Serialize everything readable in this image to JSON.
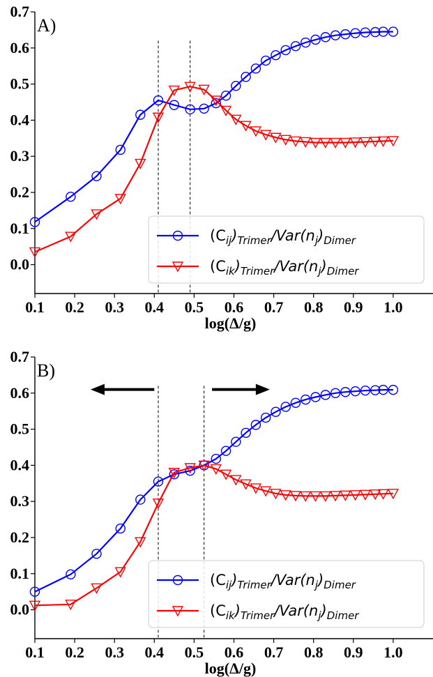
{
  "colors": {
    "series_1": "#0000ff",
    "series_2": "#ff0000",
    "axis": "#000000"
  },
  "legend_items": [
    {
      "main_1": "(C",
      "sub_1": "ij",
      "main_2": ")",
      "sub_2": "Trimer",
      "main_3": "/Var(n",
      "sub_3": "j",
      "main_4": ")",
      "sub_4": "Dimer"
    },
    {
      "main_1": "(C",
      "sub_1": "ik",
      "main_2": ")",
      "sub_2": "Trimer",
      "main_3": "/Var(n",
      "sub_3": "j",
      "main_4": ")",
      "sub_4": "Dimer"
    }
  ],
  "chart_data": [
    {
      "type": "line",
      "panel_label": "A)",
      "xlabel": "log(Δ/g)",
      "ylabel": "",
      "xlim": [
        0.1,
        1.1
      ],
      "ylim": [
        -0.08,
        0.7
      ],
      "xticks": [
        "0.1",
        "0.2",
        "0.3",
        "0.4",
        "0.5",
        "0.6",
        "0.7",
        "0.8",
        "0.9",
        "1.0"
      ],
      "yticks": [
        "0.0",
        "0.1",
        "0.2",
        "0.3",
        "0.4",
        "0.5",
        "0.6",
        "0.7"
      ],
      "legend_position": "lower-right",
      "vlines": [
        0.41,
        0.49
      ],
      "arrows": [],
      "series": [
        {
          "legend_index": 0,
          "marker": "circle",
          "x": [
            0.1,
            0.19,
            0.255,
            0.315,
            0.365,
            0.41,
            0.45,
            0.49,
            0.525,
            0.555,
            0.58,
            0.605,
            0.63,
            0.655,
            0.68,
            0.705,
            0.73,
            0.755,
            0.78,
            0.805,
            0.83,
            0.855,
            0.88,
            0.905,
            0.93,
            0.955,
            0.975,
            1.0
          ],
          "y": [
            0.118,
            0.188,
            0.245,
            0.318,
            0.415,
            0.455,
            0.442,
            0.43,
            0.432,
            0.447,
            0.468,
            0.495,
            0.52,
            0.543,
            0.565,
            0.58,
            0.594,
            0.605,
            0.615,
            0.623,
            0.63,
            0.635,
            0.638,
            0.641,
            0.643,
            0.644,
            0.645,
            0.645
          ]
        },
        {
          "legend_index": 1,
          "marker": "triangle-down",
          "x": [
            0.1,
            0.19,
            0.255,
            0.315,
            0.365,
            0.41,
            0.45,
            0.49,
            0.525,
            0.555,
            0.58,
            0.605,
            0.63,
            0.655,
            0.68,
            0.705,
            0.73,
            0.755,
            0.78,
            0.805,
            0.83,
            0.855,
            0.88,
            0.905,
            0.93,
            0.955,
            0.975,
            1.0
          ],
          "y": [
            0.035,
            0.078,
            0.14,
            0.183,
            0.28,
            0.408,
            0.483,
            0.493,
            0.485,
            0.455,
            0.427,
            0.402,
            0.385,
            0.37,
            0.36,
            0.352,
            0.346,
            0.342,
            0.34,
            0.338,
            0.338,
            0.338,
            0.338,
            0.339,
            0.34,
            0.341,
            0.342,
            0.343
          ]
        }
      ]
    },
    {
      "type": "line",
      "panel_label": "B)",
      "xlabel": "log(Δ/g)",
      "ylabel": "",
      "xlim": [
        0.1,
        1.1
      ],
      "ylim": [
        -0.08,
        0.7
      ],
      "xticks": [
        "0.1",
        "0.2",
        "0.3",
        "0.4",
        "0.5",
        "0.6",
        "0.7",
        "0.8",
        "0.9",
        "1.0"
      ],
      "yticks": [
        "0.0",
        "0.1",
        "0.2",
        "0.3",
        "0.4",
        "0.5",
        "0.6",
        "0.7"
      ],
      "legend_position": "lower-right",
      "vlines": [
        0.41,
        0.525
      ],
      "arrows": [
        {
          "direction": "left",
          "x_from": 0.4,
          "x_to": 0.24,
          "y": 0.61
        },
        {
          "direction": "right",
          "x_from": 0.545,
          "x_to": 0.69,
          "y": 0.61
        }
      ],
      "series": [
        {
          "legend_index": 0,
          "marker": "circle",
          "x": [
            0.1,
            0.19,
            0.255,
            0.315,
            0.365,
            0.41,
            0.45,
            0.49,
            0.525,
            0.555,
            0.58,
            0.605,
            0.63,
            0.655,
            0.68,
            0.705,
            0.73,
            0.755,
            0.78,
            0.805,
            0.83,
            0.855,
            0.88,
            0.905,
            0.93,
            0.955,
            0.975,
            1.0
          ],
          "y": [
            0.05,
            0.098,
            0.155,
            0.225,
            0.305,
            0.355,
            0.375,
            0.385,
            0.4,
            0.418,
            0.44,
            0.465,
            0.49,
            0.512,
            0.532,
            0.548,
            0.562,
            0.573,
            0.582,
            0.589,
            0.595,
            0.6,
            0.603,
            0.605,
            0.607,
            0.608,
            0.609,
            0.609
          ]
        },
        {
          "legend_index": 1,
          "marker": "triangle-down",
          "x": [
            0.1,
            0.19,
            0.255,
            0.315,
            0.365,
            0.41,
            0.45,
            0.49,
            0.525,
            0.555,
            0.58,
            0.605,
            0.63,
            0.655,
            0.68,
            0.705,
            0.73,
            0.755,
            0.78,
            0.805,
            0.83,
            0.855,
            0.88,
            0.905,
            0.93,
            0.955,
            0.975,
            1.0
          ],
          "y": [
            0.012,
            0.015,
            0.06,
            0.105,
            0.188,
            0.295,
            0.38,
            0.393,
            0.4,
            0.39,
            0.375,
            0.36,
            0.348,
            0.337,
            0.329,
            0.322,
            0.318,
            0.316,
            0.315,
            0.315,
            0.315,
            0.316,
            0.317,
            0.318,
            0.319,
            0.32,
            0.321,
            0.322
          ]
        }
      ]
    }
  ]
}
